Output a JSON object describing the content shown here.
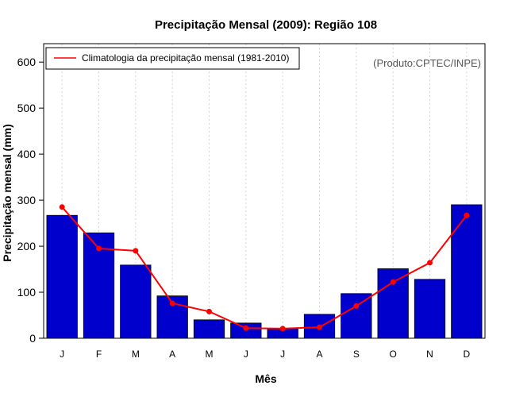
{
  "chart_data": {
    "type": "bar",
    "title": "Precipitação Mensal (2009): Região 108",
    "xlabel": "Mês",
    "ylabel": "Precipitação mensal (mm)",
    "ylim": [
      0,
      640
    ],
    "yticks": [
      0,
      100,
      200,
      300,
      400,
      500,
      600
    ],
    "categories": [
      "J",
      "F",
      "M",
      "A",
      "M",
      "J",
      "J",
      "A",
      "S",
      "O",
      "N",
      "D"
    ],
    "series": [
      {
        "name": "Precipitação mensal (2009)",
        "type": "bar",
        "color": "#0000cc",
        "values": [
          267,
          229,
          159,
          92,
          40,
          33,
          21,
          52,
          97,
          151,
          128,
          290
        ]
      },
      {
        "name": "Climatologia da precipitação mensal (1981-2010)",
        "type": "line",
        "color": "#ff0000",
        "values": [
          285,
          195,
          190,
          76,
          58,
          22,
          21,
          24,
          70,
          122,
          164,
          267
        ]
      }
    ],
    "grid": "vertical dotted",
    "legend": {
      "position": "top-left",
      "entries": [
        "Climatologia da precipitação mensal (1981-2010)"
      ]
    },
    "annotation": "(Produto:CPTEC/INPE)"
  }
}
